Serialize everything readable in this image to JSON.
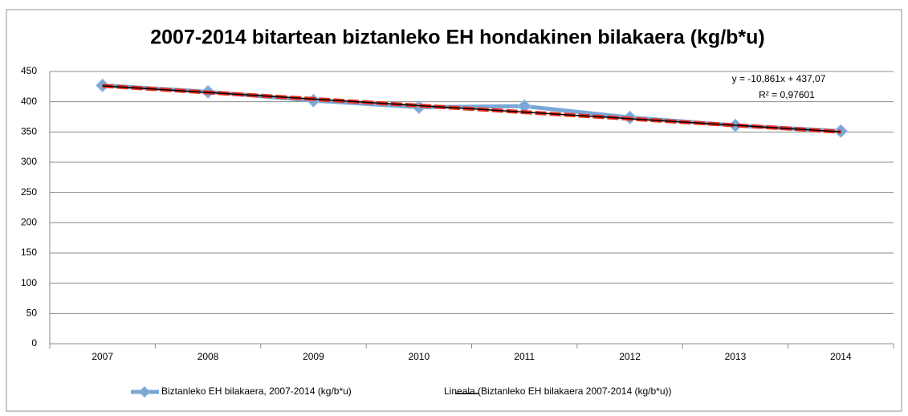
{
  "chart_data": {
    "type": "line",
    "title": "2007-2014 bitartean biztanleko EH hondakinen bilakaera (kg/b*u)",
    "categories": [
      "2007",
      "2008",
      "2009",
      "2010",
      "2011",
      "2012",
      "2013",
      "2014"
    ],
    "series": [
      {
        "name": "Biztanleko EH bilakaera, 2007-2014 (kg/b*u)",
        "color": "#7ba7d7",
        "values": [
          427,
          416.4,
          401.9,
          391,
          392.6,
          374,
          360.8,
          351.5
        ]
      },
      {
        "name": "Lineala (Biztanleko EH bilakaera 2007-2014 (kg/b*u))",
        "color": "#e8301c",
        "values": [
          426.2,
          415.3,
          404.5,
          393.6,
          382.8,
          371.9,
          361.0,
          350.2
        ]
      }
    ],
    "annotations": [
      "y = -10,861x + 437,07",
      "R² = 0,97601"
    ],
    "ylim": [
      0,
      450
    ],
    "yticks": [
      0,
      50,
      100,
      150,
      200,
      250,
      300,
      350,
      400,
      450
    ],
    "grid": true,
    "legend": "bottom"
  }
}
